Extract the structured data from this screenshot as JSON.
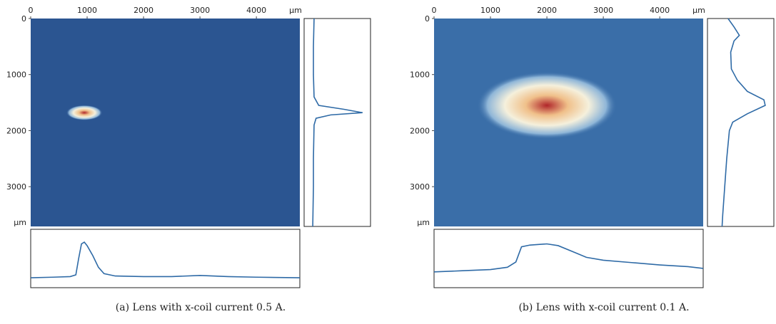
{
  "chart_data": [
    {
      "type": "heatmap",
      "caption": "(a) Lens with x-coil current 0.5 A.",
      "xlim": [
        0,
        4770
      ],
      "ylim": [
        0,
        3710
      ],
      "xticks": [
        0,
        1000,
        2000,
        3000,
        4000
      ],
      "yticks": [
        0,
        1000,
        2000,
        3000
      ],
      "x_unit": "μm",
      "y_unit": "μm",
      "background": "#2b5591",
      "color": "#2e6aa6",
      "profile_lim": [
        0,
        100
      ],
      "x_profile": {
        "x": [
          0,
          400,
          700,
          800,
          850,
          900,
          950,
          1000,
          1100,
          1200,
          1300,
          1500,
          2000,
          2500,
          3000,
          3500,
          4000,
          4770
        ],
        "values": [
          17,
          18,
          19,
          22,
          50,
          75,
          78,
          72,
          55,
          35,
          24,
          20,
          19,
          19,
          21,
          19,
          18,
          17
        ]
      },
      "y_profile": {
        "y": [
          0,
          500,
          1000,
          1400,
          1550,
          1620,
          1680,
          1720,
          1780,
          1900,
          2500,
          3000,
          3710
        ],
        "values": [
          15,
          14,
          14,
          15,
          22,
          60,
          88,
          40,
          18,
          15,
          14,
          14,
          13
        ]
      }
    },
    {
      "type": "heatmap",
      "caption": "(b) Lens with x-coil current 0.1 A.",
      "xlim": [
        0,
        4770
      ],
      "ylim": [
        0,
        3710
      ],
      "xticks": [
        0,
        1000,
        2000,
        3000,
        4000
      ],
      "yticks": [
        0,
        1000,
        2000,
        3000
      ],
      "x_unit": "μm",
      "y_unit": "μm",
      "background": "#3a6ea8",
      "color": "#2e6aa6",
      "profile_lim": [
        0,
        100
      ],
      "x_profile": {
        "x": [
          0,
          500,
          1000,
          1300,
          1450,
          1550,
          1700,
          2000,
          2200,
          2500,
          2700,
          3000,
          3500,
          4000,
          4500,
          4770
        ],
        "values": [
          27,
          29,
          31,
          35,
          44,
          70,
          73,
          75,
          72,
          60,
          52,
          47,
          43,
          39,
          36,
          33
        ]
      },
      "y_profile": {
        "y": [
          0,
          150,
          300,
          400,
          600,
          900,
          1100,
          1300,
          1450,
          1550,
          1700,
          1850,
          2000,
          2500,
          3000,
          3500,
          3710
        ],
        "values": [
          31,
          40,
          48,
          40,
          35,
          36,
          45,
          60,
          85,
          87,
          60,
          38,
          33,
          29,
          26,
          23,
          22
        ]
      }
    }
  ]
}
